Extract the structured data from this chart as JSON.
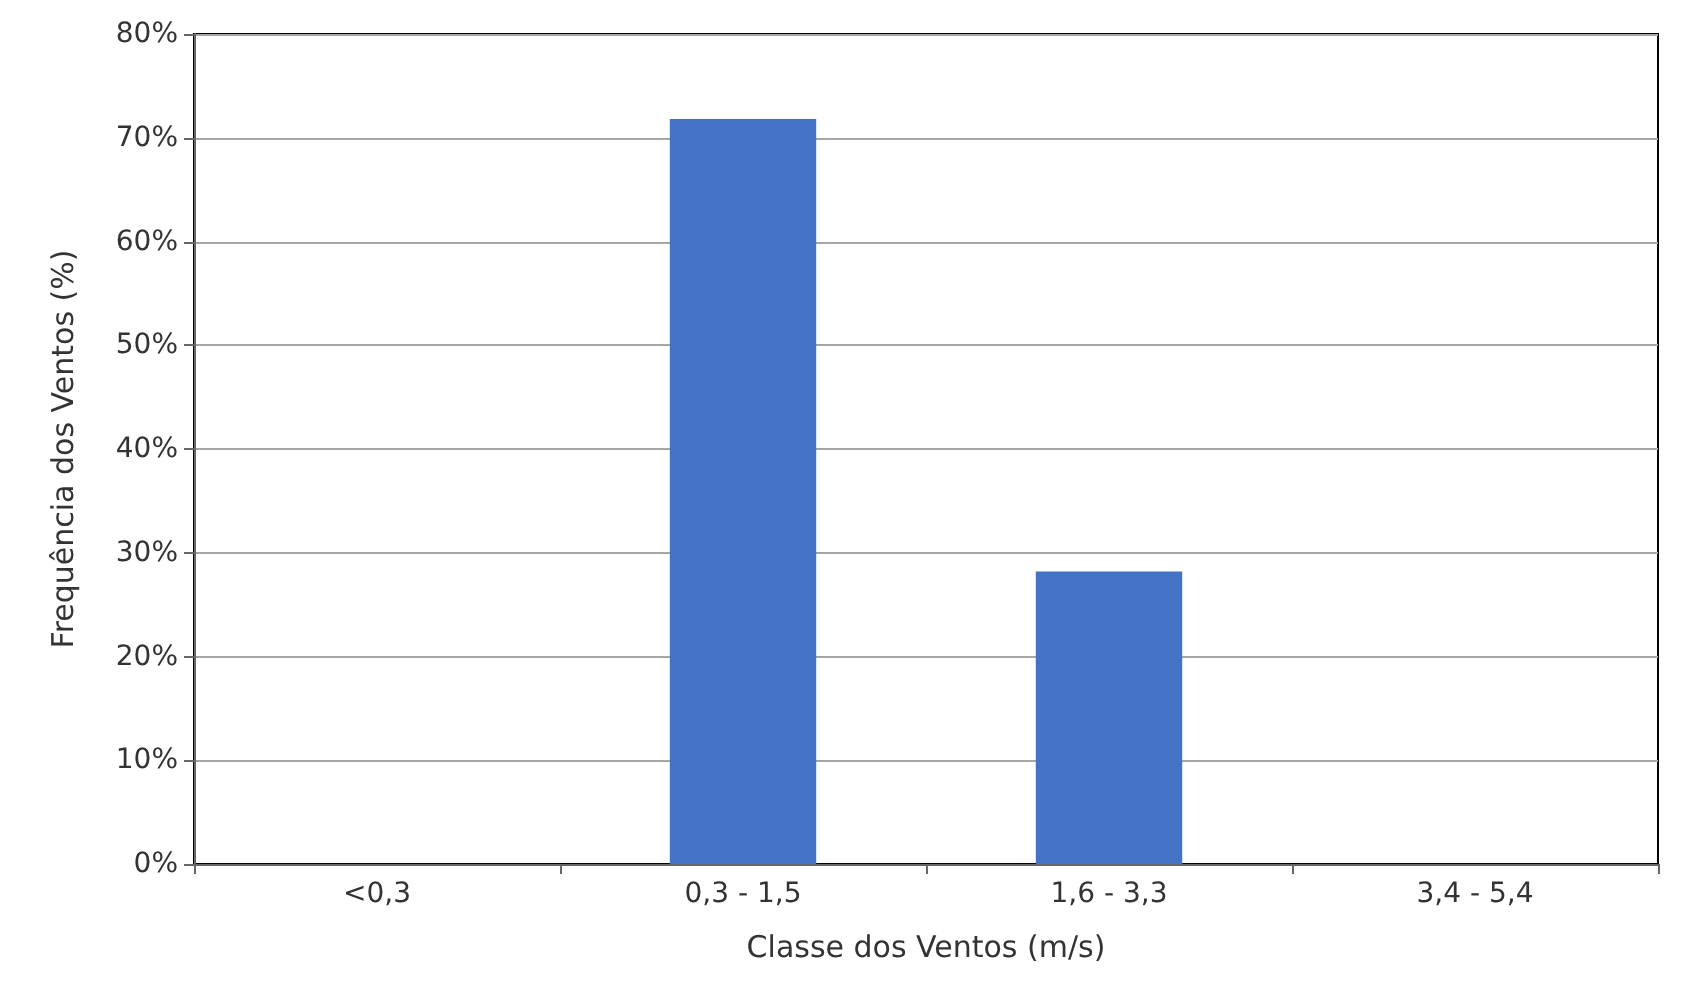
{
  "chart_data": {
    "type": "bar",
    "xlabel": "Classe dos Ventos (m/s)",
    "ylabel": "Frequência dos Ventos (%)",
    "categories": [
      "<0,3",
      "0,3 - 1,5",
      "1,6 - 3,3",
      "3,4 - 5,4"
    ],
    "values": [
      0,
      71.8,
      28.2,
      0
    ],
    "color": "#4472c4",
    "ylim": [
      0,
      80
    ],
    "yticks": [
      {
        "value": 0,
        "label": "0%"
      },
      {
        "value": 10,
        "label": "10%"
      },
      {
        "value": 20,
        "label": "20%"
      },
      {
        "value": 30,
        "label": "30%"
      },
      {
        "value": 40,
        "label": "40%"
      },
      {
        "value": 50,
        "label": "50%"
      },
      {
        "value": 60,
        "label": "60%"
      },
      {
        "value": 70,
        "label": "70%"
      },
      {
        "value": 80,
        "label": "80%"
      }
    ],
    "grid": "y"
  }
}
